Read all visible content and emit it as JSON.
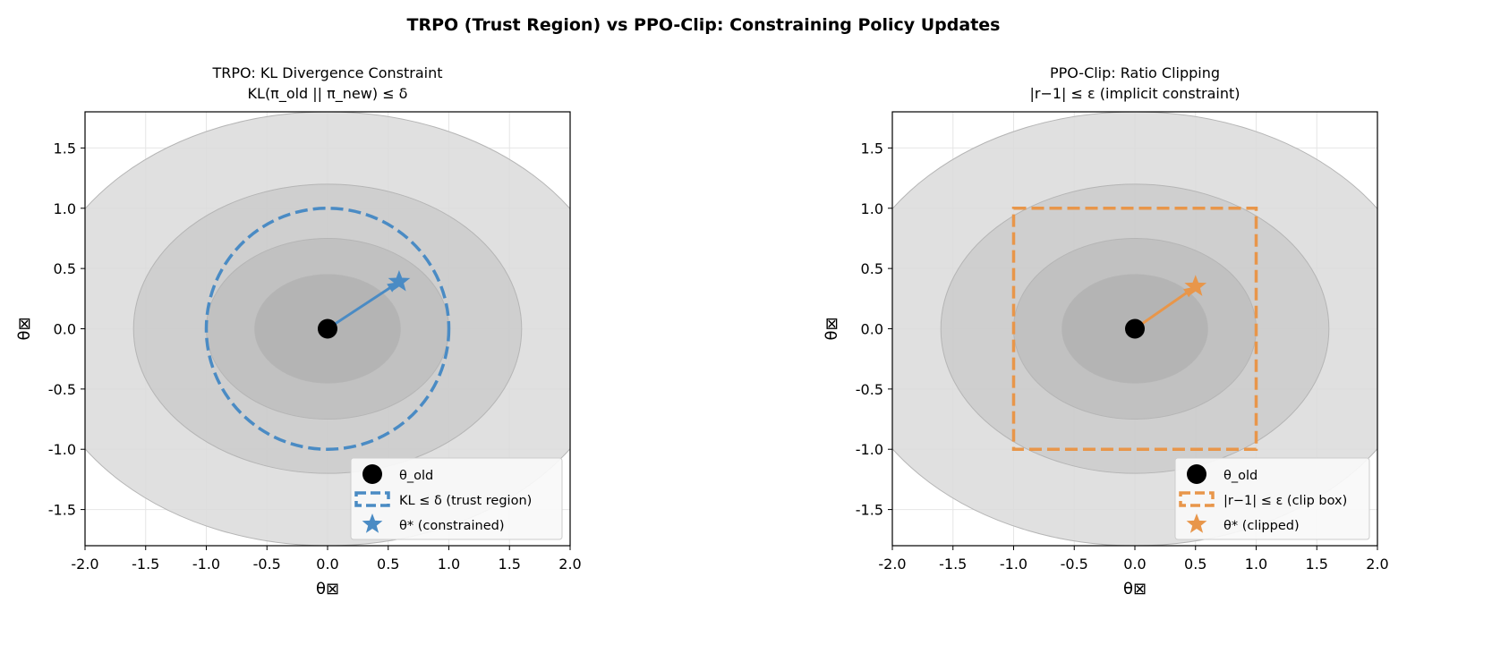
{
  "chart_data": {
    "suptitle": "TRPO (Trust Region) vs PPO-Clip: Constraining Policy Updates",
    "panels": [
      {
        "type": "scatter",
        "title_lines": [
          "TRPO: KL Divergence Constraint",
          "KL(π_old || π_new) ≤ δ"
        ],
        "xlabel": "θ⊠",
        "ylabel": "θ⊠",
        "xlim": [
          -2.0,
          2.0
        ],
        "ylim": [
          -1.8,
          1.8
        ],
        "xticks": [
          "-2.0",
          "-1.5",
          "-1.0",
          "-0.5",
          "0.0",
          "0.5",
          "1.0",
          "1.5",
          "2.0"
        ],
        "yticks": [
          "-1.5",
          "-1.0",
          "-0.5",
          "0.0",
          "0.5",
          "1.0",
          "1.5"
        ],
        "grid": true,
        "contours_semi_axes": [
          [
            2.4,
            1.8
          ],
          [
            1.6,
            1.2
          ],
          [
            1.0,
            0.75
          ],
          [
            0.6,
            0.45
          ]
        ],
        "theta_old": [
          0,
          0
        ],
        "theta_star": [
          0.59,
          0.39
        ],
        "constraint": {
          "shape": "circle",
          "radius": 1.0
        },
        "color": "#4a8bc4",
        "legend_position": "lower right",
        "legend": [
          "θ_old",
          "KL ≤ δ  (trust region)",
          "θ* (constrained)"
        ]
      },
      {
        "type": "scatter",
        "title_lines": [
          "PPO-Clip: Ratio Clipping",
          "|r−1| ≤ ε  (implicit constraint)"
        ],
        "xlabel": "θ⊠",
        "ylabel": "θ⊠",
        "xlim": [
          -2.0,
          2.0
        ],
        "ylim": [
          -1.8,
          1.8
        ],
        "xticks": [
          "-2.0",
          "-1.5",
          "-1.0",
          "-0.5",
          "0.0",
          "0.5",
          "1.0",
          "1.5",
          "2.0"
        ],
        "yticks": [
          "-1.5",
          "-1.0",
          "-0.5",
          "0.0",
          "0.5",
          "1.0",
          "1.5"
        ],
        "grid": true,
        "contours_semi_axes": [
          [
            2.4,
            1.8
          ],
          [
            1.6,
            1.2
          ],
          [
            1.0,
            0.75
          ],
          [
            0.6,
            0.45
          ]
        ],
        "theta_old": [
          0,
          0
        ],
        "theta_star": [
          0.5,
          0.35
        ],
        "constraint": {
          "shape": "box",
          "half_width": 1.0
        },
        "color": "#e8964a",
        "legend_position": "lower right",
        "legend": [
          "θ_old",
          "|r−1| ≤ ε  (clip box)",
          "θ* (clipped)"
        ]
      }
    ],
    "contour_fills": [
      "#dadada",
      "#cbcbcb",
      "#bebebe",
      "#b1b1b1"
    ]
  }
}
